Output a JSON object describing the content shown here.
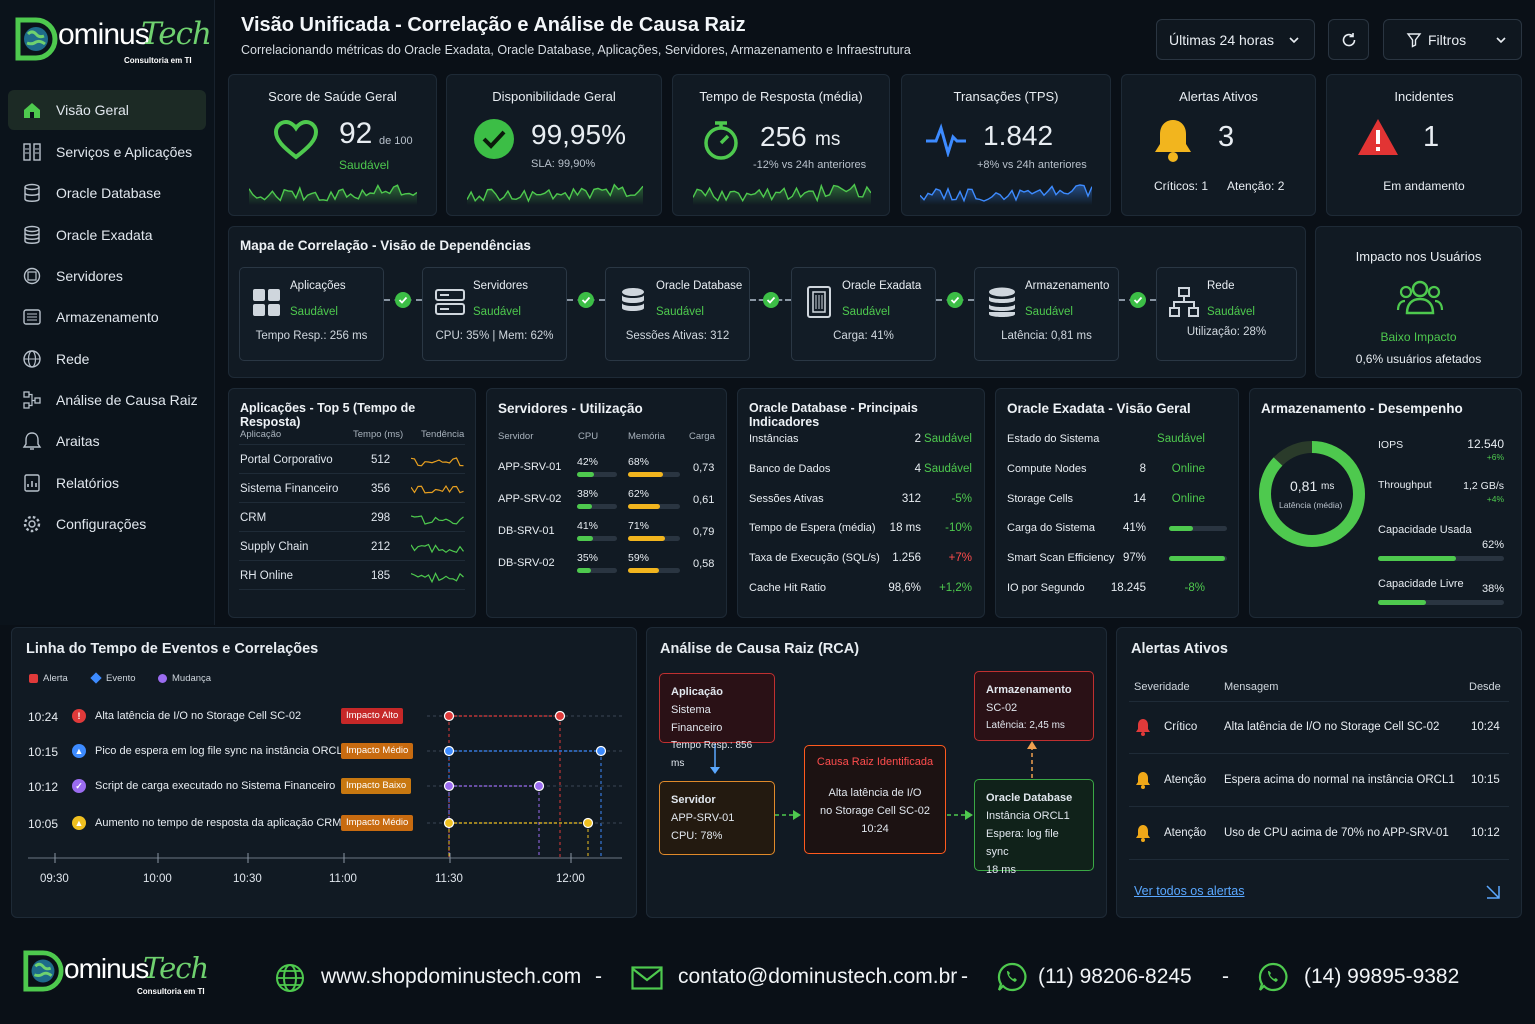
{
  "brand": {
    "name_a": "ominus",
    "name_b": "Tech",
    "tagline": "Consultoria em TI"
  },
  "sidebar": {
    "items": [
      {
        "label": "Visão Geral",
        "icon": "home-icon"
      },
      {
        "label": "Serviços e Aplicações",
        "icon": "services-icon"
      },
      {
        "label": "Oracle Database",
        "icon": "database-icon"
      },
      {
        "label": "Oracle Exadata",
        "icon": "exadata-icon"
      },
      {
        "label": "Servidores",
        "icon": "server-icon"
      },
      {
        "label": "Armazenamento",
        "icon": "storage-icon"
      },
      {
        "label": "Rede",
        "icon": "network-icon"
      },
      {
        "label": "Análise de Causa Raiz",
        "icon": "rca-icon"
      },
      {
        "label": "Araitas",
        "icon": "bell-icon"
      },
      {
        "label": "Relatórios",
        "icon": "report-icon"
      },
      {
        "label": "Configurações",
        "icon": "gear-icon"
      }
    ]
  },
  "header": {
    "title": "Visão Unificada - Correlação e Análise de Causa Raiz",
    "subtitle": "Correlacionando métricas do Oracle Exadata, Oracle Database, Aplicações, Servidores, Armazenamento e Infraestrutura",
    "time_range": "Últimas 24 horas",
    "filters_label": "Filtros"
  },
  "kpis": {
    "health": {
      "title": "Score de Saúde Geral",
      "value": "92",
      "suffix": "de 100",
      "status": "Saudável"
    },
    "availability": {
      "title": "Disponibilidade Geral",
      "value": "99,95%",
      "sla": "SLA: 99,90%"
    },
    "response": {
      "title": "Tempo de Resposta (média)",
      "value": "256",
      "unit": "ms",
      "delta": "-12% vs 24h anteriores"
    },
    "tps": {
      "title": "Transações (TPS)",
      "value": "1.842",
      "delta": "+8% vs 24h anteriores"
    },
    "alerts": {
      "title": "Alertas Ativos",
      "value": "3",
      "critical": "Críticos: 1",
      "warning": "Atenção: 2"
    },
    "incidents": {
      "title": "Incidentes",
      "value": "1",
      "status": "Em andamento"
    }
  },
  "correlation": {
    "title": "Mapa de Correlação - Visão de Dependências",
    "nodes": [
      {
        "name": "Aplicações",
        "status": "Saudável",
        "detail": "Tempo Resp.: 256 ms"
      },
      {
        "name": "Servidores",
        "status": "Saudável",
        "detail": "CPU: 35% | Mem: 62%"
      },
      {
        "name": "Oracle Database",
        "status": "Saudável",
        "detail": "Sessões Ativas: 312"
      },
      {
        "name": "Oracle Exadata",
        "status": "Saudável",
        "detail": "Carga: 41%"
      },
      {
        "name": "Armazenamento",
        "status": "Saudável",
        "detail": "Latência: 0,81 ms"
      },
      {
        "name": "Rede",
        "status": "Saudável",
        "detail": "Utilização: 28%"
      }
    ]
  },
  "impact": {
    "title": "Impacto nos Usuários",
    "level": "Baixo Impacto",
    "detail": "0,6% usuários afetados"
  },
  "apps": {
    "title": "Aplicações - Top 5 (Tempo de Resposta)",
    "headers": [
      "Aplicação",
      "Tempo (ms)",
      "Tendência"
    ],
    "rows": [
      {
        "name": "Portal Corporativo",
        "ms": "512",
        "trend_color": "#e8a020"
      },
      {
        "name": "Sistema Financeiro",
        "ms": "356",
        "trend_color": "#e8a020"
      },
      {
        "name": "CRM",
        "ms": "298",
        "trend_color": "#4ec94e"
      },
      {
        "name": "Supply Chain",
        "ms": "212",
        "trend_color": "#4ec94e"
      },
      {
        "name": "RH Online",
        "ms": "185",
        "trend_color": "#4ec94e"
      }
    ]
  },
  "servers": {
    "title": "Servidores - Utilização",
    "headers": [
      "Servidor",
      "CPU",
      "Memória",
      "Carga"
    ],
    "rows": [
      {
        "name": "APP-SRV-01",
        "cpu": "42%",
        "cpu_v": 0.42,
        "mem": "68%",
        "mem_v": 0.68,
        "load": "0,73"
      },
      {
        "name": "APP-SRV-02",
        "cpu": "38%",
        "cpu_v": 0.38,
        "mem": "62%",
        "mem_v": 0.62,
        "load": "0,61"
      },
      {
        "name": "DB-SRV-01",
        "cpu": "41%",
        "cpu_v": 0.41,
        "mem": "71%",
        "mem_v": 0.71,
        "load": "0,79"
      },
      {
        "name": "DB-SRV-02",
        "cpu": "35%",
        "cpu_v": 0.35,
        "mem": "59%",
        "mem_v": 0.59,
        "load": "0,58"
      }
    ]
  },
  "oracle_db": {
    "title": "Oracle Database - Principais Indicadores",
    "rows": [
      {
        "label": "Instâncias",
        "value": "2",
        "extra": "Saudável",
        "color": "#4ec94e"
      },
      {
        "label": "Banco de Dados",
        "value": "4",
        "extra": "Saudável",
        "color": "#4ec94e"
      },
      {
        "label": "Sessões Ativas",
        "value": "312",
        "extra": "-5%",
        "color": "#4ec94e"
      },
      {
        "label": "Tempo de Espera (média)",
        "value": "18 ms",
        "extra": "-10%",
        "color": "#4ec94e"
      },
      {
        "label": "Taxa de Execução (SQL/s)",
        "value": "1.256",
        "extra": "+7%",
        "color": "#ff4d4d"
      },
      {
        "label": "Cache Hit Ratio",
        "value": "98,6%",
        "extra": "+1,2%",
        "color": "#4ec94e"
      }
    ]
  },
  "exadata": {
    "title": "Oracle Exadata - Visão Geral",
    "rows": [
      {
        "label": "Estado do Sistema",
        "value": "",
        "extra": "Saudável",
        "color": "#4ec94e"
      },
      {
        "label": "Compute Nodes",
        "value": "8",
        "extra": "Online",
        "color": "#4ec94e"
      },
      {
        "label": "Storage Cells",
        "value": "14",
        "extra": "Online",
        "color": "#4ec94e"
      },
      {
        "label": "Carga do Sistema",
        "value": "41%",
        "bar": 0.41
      },
      {
        "label": "Smart Scan Efficiency",
        "value": "97%",
        "bar": 0.97
      },
      {
        "label": "IO por Segundo",
        "value": "18.245",
        "extra": "-8%",
        "color": "#4ec94e"
      }
    ]
  },
  "storage": {
    "title": "Armazenamento - Desempenho",
    "latency_value": "0,81",
    "latency_unit": "ms",
    "latency_label": "Latência (média)",
    "iops_label": "IOPS",
    "iops_value": "12.540",
    "iops_delta": "+6%",
    "tp_label": "Throughput",
    "tp_value": "1,2 GB/s",
    "tp_delta": "+4%",
    "used_label": "Capacidade Usada",
    "used_value": "62%",
    "used_v": 0.62,
    "free_label": "Capacidade Livre",
    "free_value": "38%",
    "free_v": 0.38
  },
  "timeline": {
    "title": "Linha do Tempo de Eventos e Correlações",
    "legend": [
      "Alerta",
      "Evento",
      "Mudança"
    ],
    "events": [
      {
        "time": "10:24",
        "text": "Alta latência de I/O no Storage Cell SC-02",
        "impact": "Impacto Alto",
        "color": "#e03a3a"
      },
      {
        "time": "10:15",
        "text": "Pico de espera em log file sync na instância ORCL1",
        "impact": "Impacto Médio",
        "color": "#3d8bff"
      },
      {
        "time": "10:12",
        "text": "Script de carga executado no Sistema Financeiro",
        "impact": "Impacto Baixo",
        "color": "#9b6cf0"
      },
      {
        "time": "10:05",
        "text": "Aumento no tempo de resposta da aplicação CRM",
        "impact": "Impacto Médio",
        "color": "#f0c020"
      }
    ],
    "axis": [
      "09:30",
      "10:00",
      "10:30",
      "11:00",
      "11:30",
      "12:00"
    ]
  },
  "rca": {
    "title": "Análise de Causa Raiz (RCA)",
    "app": {
      "title": "Aplicação",
      "l1": "Sistema Financeiro",
      "l2": "Tempo Resp.: 856 ms"
    },
    "server": {
      "title": "Servidor",
      "l1": "APP-SRV-01",
      "l2": "CPU: 78%"
    },
    "root": {
      "title": "Causa Raiz Identificada",
      "l1": "Alta latência de I/O",
      "l2": "no Storage Cell SC-02",
      "l3": "10:24"
    },
    "storage": {
      "title": "Armazenamento",
      "l1": "SC-02",
      "l2": "Latência: 2,45 ms"
    },
    "db": {
      "title": "Oracle Database",
      "l1": "Instância ORCL1",
      "l2": "Espera: log file sync",
      "l3": "18 ms"
    }
  },
  "alerts": {
    "title": "Alertas Ativos",
    "headers": [
      "Severidade",
      "Mensagem",
      "Desde"
    ],
    "rows": [
      {
        "sev": "Crítico",
        "msg": "Alta latência de I/O no Storage Cell SC-02",
        "since": "10:24",
        "color": "#e03a3a"
      },
      {
        "sev": "Atenção",
        "msg": "Espera acima do normal na instância ORCL1",
        "since": "10:15",
        "color": "#f0a818"
      },
      {
        "sev": "Atenção",
        "msg": "Uso de CPU acima de 70% no APP-SRV-01",
        "since": "10:12",
        "color": "#f0a818"
      }
    ],
    "link": "Ver todos os alertas"
  },
  "footer": {
    "site": "www.shopdominustech.com",
    "email": "contato@dominustech.com.br",
    "phone1": "(11) 98206-8245",
    "phone2": "(14) 99895-9382",
    "sep": "-"
  }
}
